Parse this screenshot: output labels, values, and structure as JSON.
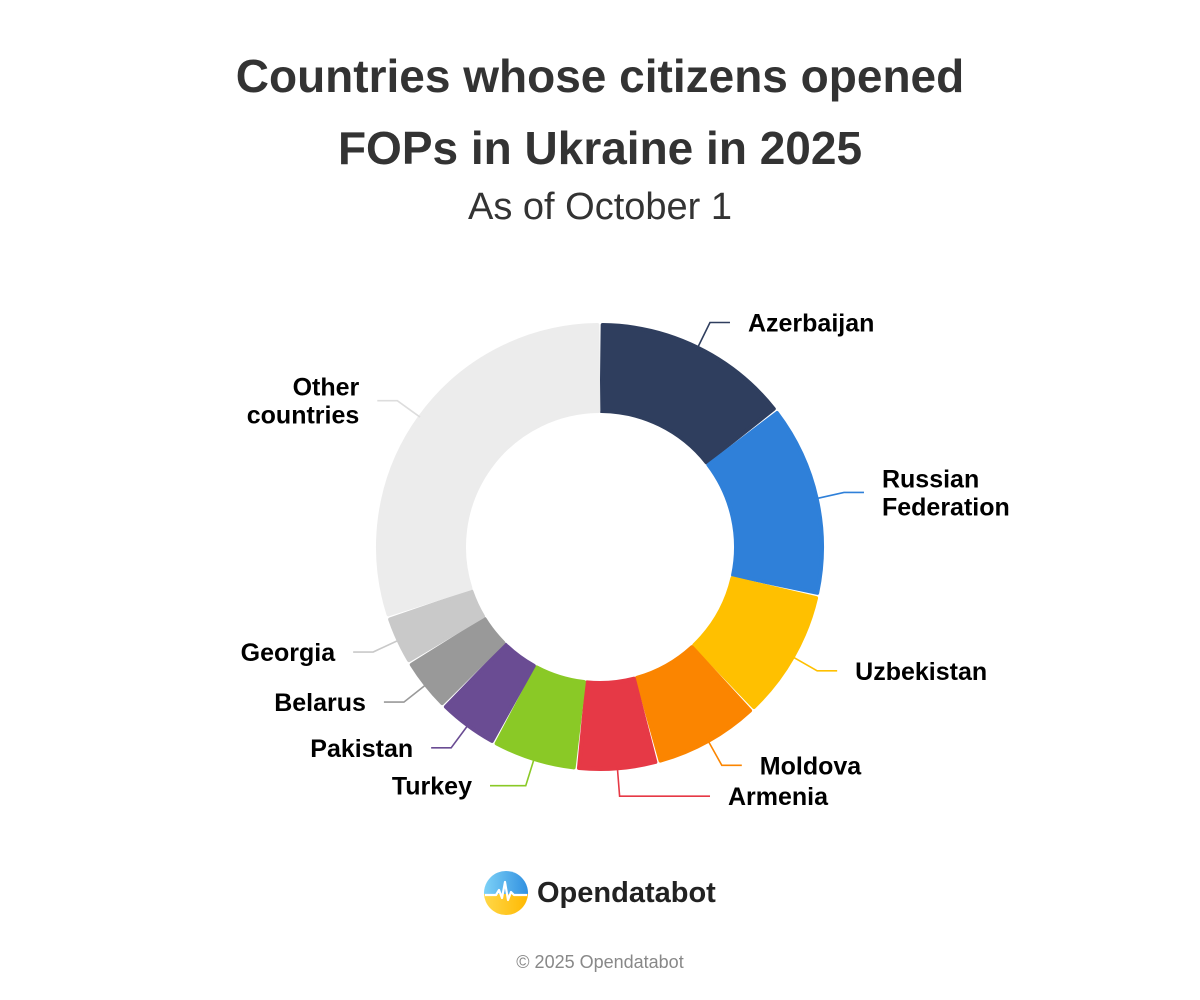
{
  "title_lines": [
    "Countries whose citizens opened",
    "FOPs in Ukraine in 2025"
  ],
  "subtitle": "As of October 1",
  "logo_text": "Opendatabot",
  "footer": "© 2025 Opendatabot",
  "chart_data": {
    "type": "pie",
    "donut": true,
    "title": "Countries whose citizens opened FOPs in Ukraine in 2025",
    "subtitle": "As of October 1",
    "categories": [
      "Azerbaijan",
      "Russian Federation",
      "Uzbekistan",
      "Moldova",
      "Armenia",
      "Turkey",
      "Pakistan",
      "Belarus",
      "Georgia",
      "Other countries"
    ],
    "values": [
      14.5,
      14.0,
      9.5,
      7.8,
      5.9,
      6.2,
      4.5,
      3.9,
      3.6,
      30.1
    ],
    "colors": [
      "#2f3e5e",
      "#2f80d9",
      "#ffc000",
      "#fb8500",
      "#e63946",
      "#8ac926",
      "#6a4c93",
      "#999999",
      "#c9c9c9",
      "#ececec"
    ],
    "label_lines": [
      [
        "Azerbaijan"
      ],
      [
        "Russian",
        "Federation"
      ],
      [
        "Uzbekistan"
      ],
      [
        "Moldova"
      ],
      [
        "Armenia"
      ],
      [
        "Turkey"
      ],
      [
        "Pakistan"
      ],
      [
        "Belarus"
      ],
      [
        "Georgia"
      ],
      [
        "Other",
        "countries"
      ]
    ]
  }
}
